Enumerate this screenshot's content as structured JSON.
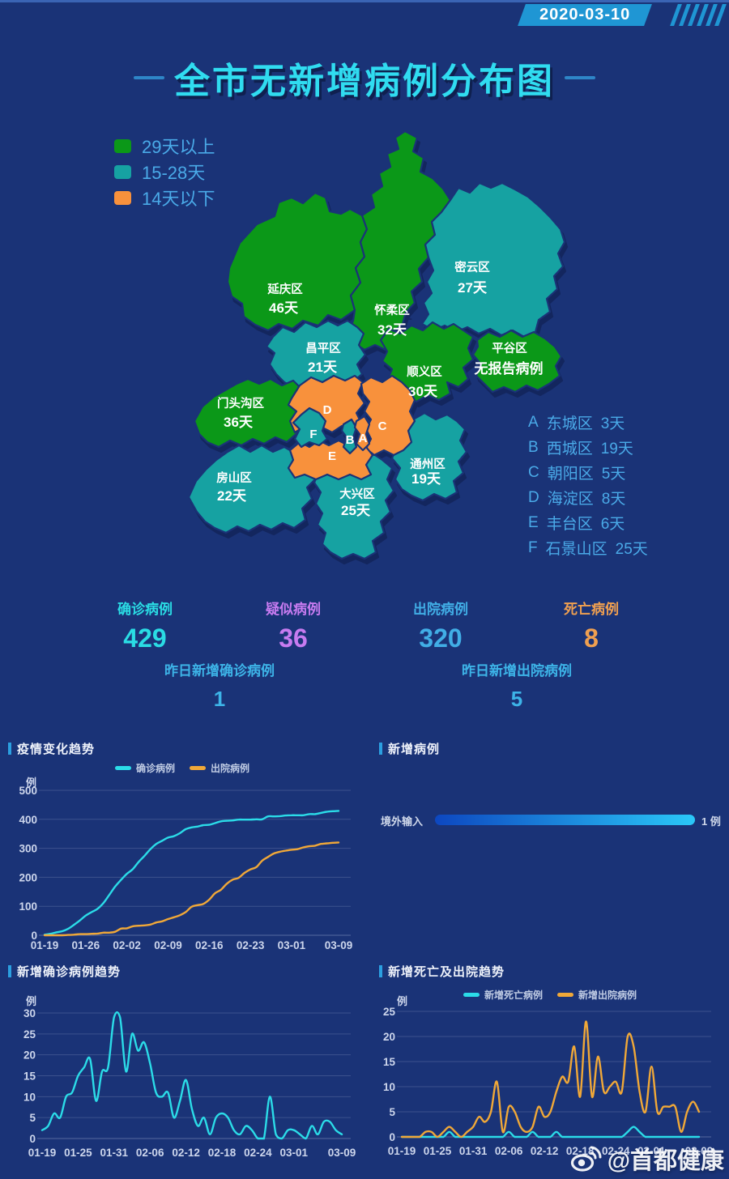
{
  "date": "2020-03-10",
  "title": "全市无新增病例分布图",
  "stats": {
    "primary": [
      {
        "label": "确诊病例",
        "value": "429",
        "color": "#2adce4"
      },
      {
        "label": "疑似病例",
        "value": "36",
        "color": "#c77bf0"
      },
      {
        "label": "出院病例",
        "value": "320",
        "color": "#41aee6"
      },
      {
        "label": "死亡病例",
        "value": "8",
        "color": "#f0a050"
      }
    ],
    "secondary": [
      {
        "label": "昨日新增确诊病例",
        "value": "1",
        "color": "#3db4e8"
      },
      {
        "label": "昨日新增出院病例",
        "value": "5",
        "color": "#3db4e8"
      }
    ]
  },
  "watermark": "@首都健康",
  "chart_data": [
    {
      "id": "map",
      "type": "choropleth-map",
      "legend": [
        {
          "label": "29天以上",
          "color": "#0b9818"
        },
        {
          "label": "15-28天",
          "color": "#16a2a2"
        },
        {
          "label": "14天以下",
          "color": "#f8913c"
        }
      ],
      "districts": [
        {
          "id": "yanqing",
          "name": "延庆区",
          "value": "46天",
          "category": 0
        },
        {
          "id": "huairou",
          "name": "怀柔区",
          "value": "32天",
          "category": 0
        },
        {
          "id": "miyun",
          "name": "密云区",
          "value": "27天",
          "category": 1
        },
        {
          "id": "pinggu",
          "name": "平谷区",
          "value": "无报告病例",
          "category": 0
        },
        {
          "id": "shunyi",
          "name": "顺义区",
          "value": "30天",
          "category": 0
        },
        {
          "id": "changping",
          "name": "昌平区",
          "value": "21天",
          "category": 1
        },
        {
          "id": "mentougou",
          "name": "门头沟区",
          "value": "36天",
          "category": 0
        },
        {
          "id": "fangshan",
          "name": "房山区",
          "value": "22天",
          "category": 1
        },
        {
          "id": "daxing",
          "name": "大兴区",
          "value": "25天",
          "category": 1
        },
        {
          "id": "tongzhou",
          "name": "通州区",
          "value": "19天",
          "category": 1
        },
        {
          "id": "haidian",
          "letter": "D",
          "category": 2
        },
        {
          "id": "chaoyang",
          "letter": "C",
          "category": 2
        },
        {
          "id": "fengtai",
          "letter": "E",
          "category": 2
        },
        {
          "id": "shijingshan",
          "letter": "F",
          "category": 1
        },
        {
          "id": "xicheng",
          "letter": "B",
          "category": 1
        },
        {
          "id": "dongcheng",
          "letter": "A",
          "category": 2
        }
      ],
      "letter_legend": [
        {
          "letter": "A",
          "name": "东城区",
          "value": "3天"
        },
        {
          "letter": "B",
          "name": "西城区",
          "value": "19天"
        },
        {
          "letter": "C",
          "name": "朝阳区",
          "value": "5天"
        },
        {
          "letter": "D",
          "name": "海淀区",
          "value": "8天"
        },
        {
          "letter": "E",
          "name": "丰台区",
          "value": "6天"
        },
        {
          "letter": "F",
          "name": "石景山区",
          "value": "25天"
        }
      ]
    },
    {
      "id": "trend",
      "type": "line",
      "title": "疫情变化趋势",
      "unit": "例",
      "y_ticks": [
        500,
        400,
        300,
        200,
        100,
        0
      ],
      "y_max": 500,
      "days": 51,
      "x_ticks": [
        {
          "label": "01-19",
          "d": 0
        },
        {
          "label": "01-26",
          "d": 7
        },
        {
          "label": "02-02",
          "d": 14
        },
        {
          "label": "02-09",
          "d": 21
        },
        {
          "label": "02-16",
          "d": 28
        },
        {
          "label": "02-23",
          "d": 35
        },
        {
          "label": "03-01",
          "d": 42
        },
        {
          "label": "03-09",
          "d": 50
        }
      ],
      "series": [
        {
          "name": "确诊病例",
          "color": "#2bdce8",
          "values": [
            2,
            5,
            10,
            14,
            22,
            36,
            51,
            68,
            80,
            91,
            111,
            139,
            168,
            191,
            212,
            228,
            253,
            274,
            297,
            315,
            326,
            337,
            342,
            352,
            366,
            372,
            375,
            380,
            381,
            387,
            393,
            395,
            396,
            399,
            399,
            399,
            400,
            400,
            410,
            410,
            411,
            413,
            414,
            414,
            414,
            418,
            418,
            422,
            426,
            428,
            429
          ]
        },
        {
          "name": "出院病例",
          "color": "#f0a838",
          "values": [
            0,
            0,
            0,
            0,
            1,
            2,
            4,
            4,
            5,
            6,
            9,
            9,
            12,
            23,
            24,
            31,
            33,
            34,
            37,
            44,
            48,
            56,
            62,
            69,
            80,
            98,
            104,
            108,
            123,
            145,
            157,
            178,
            192,
            198,
            215,
            227,
            235,
            257,
            270,
            282,
            288,
            292,
            295,
            297,
            303,
            307,
            309,
            315,
            317,
            319,
            320
          ]
        }
      ]
    },
    {
      "id": "new_cases",
      "type": "bar",
      "title": "新增病例",
      "items": [
        {
          "label": "境外输入",
          "value": 1,
          "value_label": "1 例"
        }
      ]
    },
    {
      "id": "new_confirmed",
      "type": "line",
      "title": "新增确诊病例趋势",
      "unit": "例",
      "y_ticks": [
        30,
        25,
        20,
        15,
        10,
        5,
        0
      ],
      "y_max": 30,
      "days": 51,
      "x_ticks": [
        {
          "label": "01-19",
          "d": 0
        },
        {
          "label": "01-25",
          "d": 6
        },
        {
          "label": "01-31",
          "d": 12
        },
        {
          "label": "02-06",
          "d": 18
        },
        {
          "label": "02-12",
          "d": 24
        },
        {
          "label": "02-18",
          "d": 30
        },
        {
          "label": "02-24",
          "d": 36
        },
        {
          "label": "03-01",
          "d": 42
        },
        {
          "label": "03-09",
          "d": 50
        }
      ],
      "series": [
        {
          "name": "新增确诊病例",
          "color": "#2bdce8",
          "values": [
            2,
            3,
            6,
            5,
            10,
            11,
            15,
            17,
            19,
            9,
            16,
            17,
            29,
            29,
            16,
            25,
            21,
            23,
            18,
            11,
            10,
            11,
            5,
            9,
            14,
            7,
            3,
            5,
            1,
            5,
            6,
            5,
            2,
            1,
            3,
            2,
            0,
            0,
            10,
            1,
            0,
            2,
            2,
            1,
            0,
            3,
            1,
            4,
            4,
            2,
            1
          ]
        }
      ]
    },
    {
      "id": "death_discharge",
      "type": "line",
      "title": "新增死亡及出院趋势",
      "unit": "例",
      "y_ticks": [
        25,
        20,
        15,
        10,
        5,
        0
      ],
      "y_max": 25,
      "days": 51,
      "x_ticks": [
        {
          "label": "01-19",
          "d": 0
        },
        {
          "label": "01-25",
          "d": 6
        },
        {
          "label": "01-31",
          "d": 12
        },
        {
          "label": "02-06",
          "d": 18
        },
        {
          "label": "02-12",
          "d": 24
        },
        {
          "label": "02-18",
          "d": 30
        },
        {
          "label": "02-24",
          "d": 36
        },
        {
          "label": "03-01",
          "d": 42
        },
        {
          "label": "03-09",
          "d": 50
        }
      ],
      "series": [
        {
          "name": "新增死亡病例",
          "color": "#2bdce8",
          "values": [
            0,
            0,
            0,
            0,
            0,
            0,
            0,
            0,
            1,
            0,
            0,
            0,
            0,
            0,
            0,
            0,
            0,
            0,
            1,
            0,
            0,
            0,
            1,
            0,
            0,
            0,
            1,
            0,
            0,
            0,
            0,
            0,
            0,
            0,
            0,
            0,
            0,
            0,
            1,
            2,
            1,
            0,
            0,
            0,
            0,
            0,
            0,
            0,
            0,
            0,
            0
          ]
        },
        {
          "name": "新增出院病例",
          "color": "#f0a838",
          "values": [
            0,
            0,
            0,
            0,
            1,
            1,
            0,
            1,
            2,
            1,
            0,
            1,
            2,
            4,
            3,
            5,
            11,
            1,
            6,
            5,
            2,
            1,
            2,
            6,
            4,
            5,
            9,
            12,
            11,
            18,
            8,
            23,
            8,
            16,
            9,
            10,
            11,
            9,
            20,
            18,
            9,
            5,
            14,
            5,
            6,
            6,
            6,
            1,
            5,
            7,
            5
          ]
        }
      ]
    }
  ]
}
